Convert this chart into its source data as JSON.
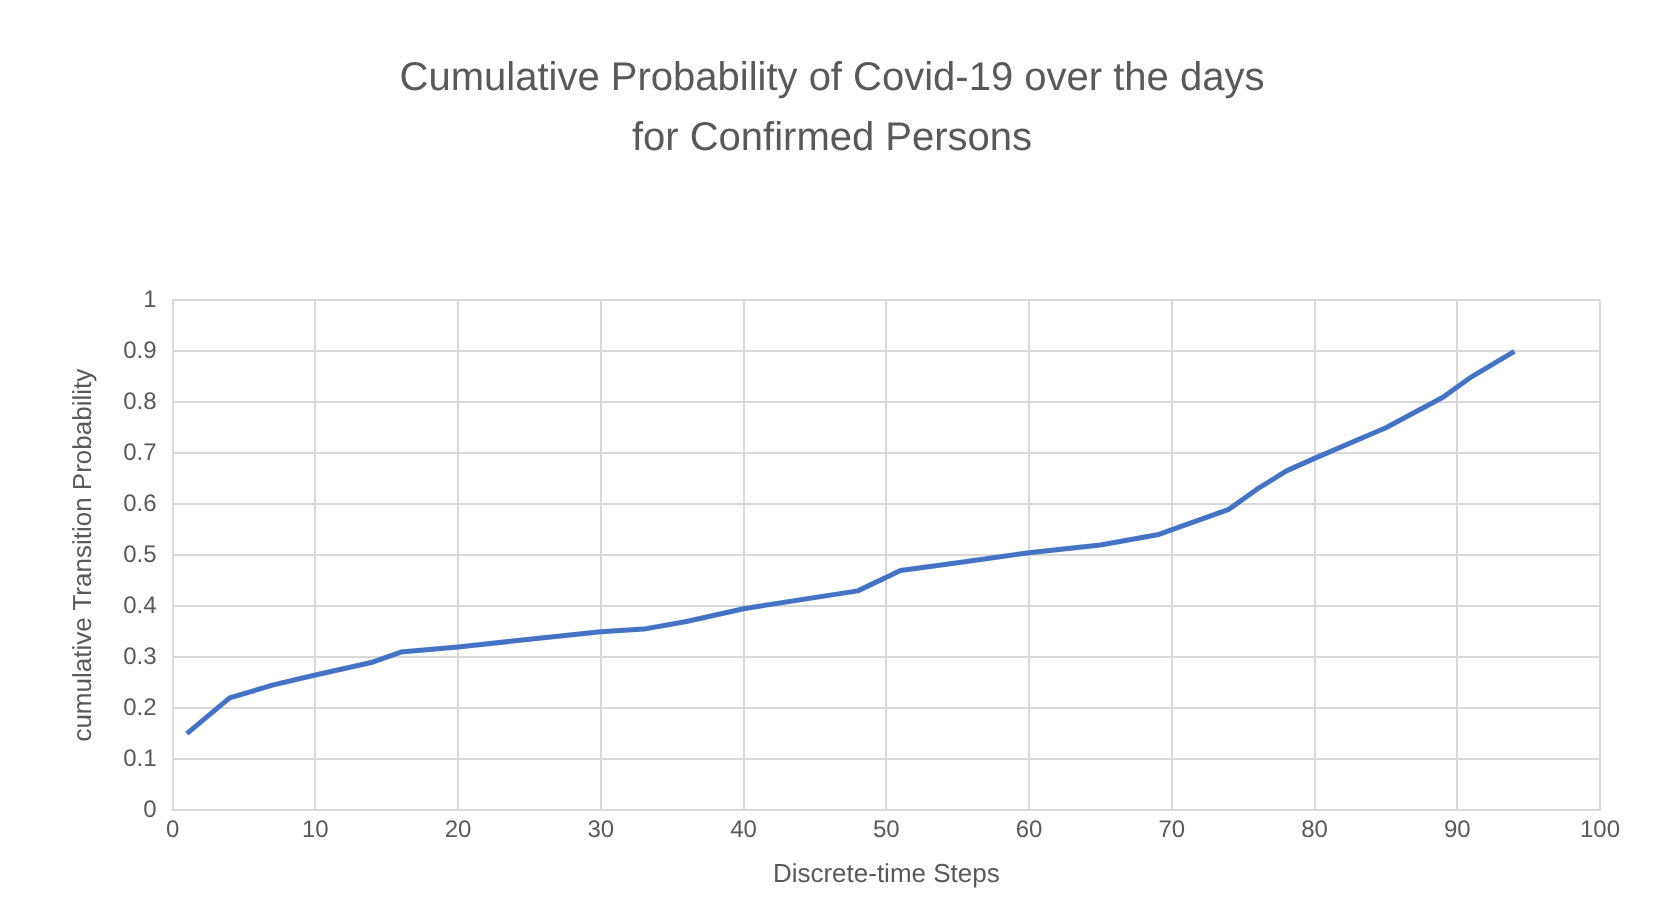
{
  "chart_data": {
    "type": "line",
    "title": "Cumulative Probability of Covid-19 over the days for Confirmed Persons",
    "xlabel": "Discrete-time Steps",
    "ylabel": "cumulative Transition Probability",
    "x": [
      1,
      4,
      7,
      10,
      14,
      16,
      20,
      25,
      30,
      33,
      36,
      40,
      48,
      51,
      55,
      60,
      65,
      69,
      74,
      76,
      78,
      80,
      85,
      89,
      91,
      94
    ],
    "series": [
      {
        "color": "#4472c4",
        "values": [
          0.15,
          0.22,
          0.245,
          0.265,
          0.29,
          0.31,
          0.32,
          0.335,
          0.35,
          0.355,
          0.37,
          0.395,
          0.43,
          0.47,
          0.485,
          0.505,
          0.52,
          0.54,
          0.59,
          0.63,
          0.665,
          0.69,
          0.75,
          0.81,
          0.85,
          0.9
        ]
      }
    ],
    "xlim": [
      0,
      100
    ],
    "xticks": [
      0,
      10,
      20,
      30,
      40,
      50,
      60,
      70,
      80,
      90,
      100
    ],
    "ylim": [
      0,
      1
    ],
    "yticks": [
      0,
      0.1,
      0.2,
      0.3,
      0.4,
      0.5,
      0.6,
      0.7,
      0.8,
      0.9,
      1
    ],
    "grid": true,
    "legend": false,
    "marker": "none",
    "line_style": "solid"
  }
}
